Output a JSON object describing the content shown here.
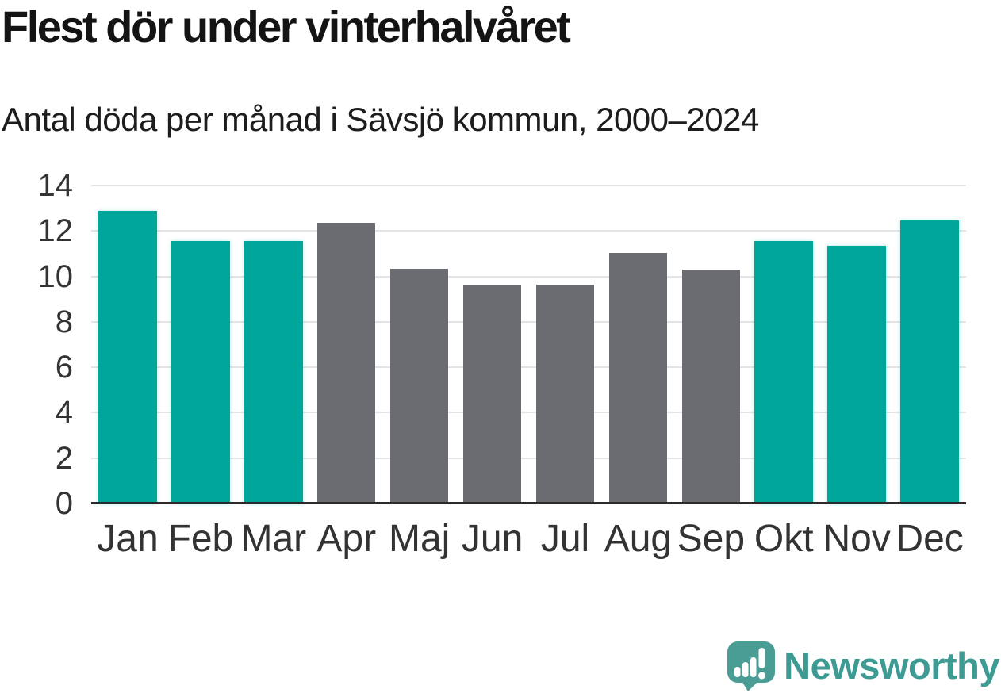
{
  "header": {
    "title": "Flest dör under vinterhalvåret",
    "subtitle": "Antal döda per månad i Sävsjö kommun, 2000–2024"
  },
  "colors": {
    "background": "#FFFFFF",
    "winter_bar": "#00A699",
    "summer_bar": "#6B6B72",
    "grid_line": "#E4E4E6",
    "axis_line": "#2B2B2B",
    "title_text": "#141414",
    "subtitle_text": "#1D1D1D",
    "tick_text": "#333333",
    "logo_bubble": "#4A9D95",
    "logo_text": "#3D9B93"
  },
  "chart_data": {
    "type": "bar",
    "title": "Flest dör under vinterhalvåret",
    "subtitle": "Antal döda per månad i Sävsjö kommun, 2000–2024",
    "categories": [
      "Jan",
      "Feb",
      "Mar",
      "Apr",
      "Maj",
      "Jun",
      "Jul",
      "Aug",
      "Sep",
      "Okt",
      "Nov",
      "Dec"
    ],
    "values": [
      12.9,
      11.55,
      11.55,
      12.35,
      10.35,
      9.6,
      9.65,
      11.05,
      10.3,
      11.55,
      11.35,
      12.45
    ],
    "bar_seasons": [
      "winter",
      "winter",
      "winter",
      "summer",
      "summer",
      "summer",
      "summer",
      "summer",
      "summer",
      "winter",
      "winter",
      "winter"
    ],
    "season_colors": {
      "winter": "#00A699",
      "summer": "#6B6B72"
    },
    "xlabel": "",
    "ylabel": "",
    "ylim": [
      0,
      14
    ],
    "yticks": [
      0,
      2,
      4,
      6,
      8,
      10,
      12,
      14
    ],
    "grid": true,
    "legend": false
  },
  "footer": {
    "brand": "Newsworthy",
    "logo_icon": "newsworthy-speech-bubble-bar-chart-icon"
  }
}
